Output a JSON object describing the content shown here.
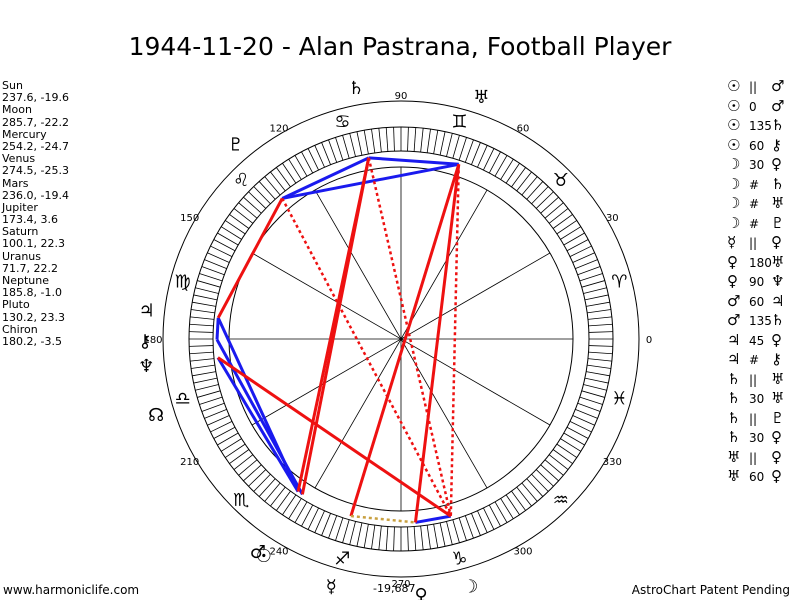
{
  "title": "1944-11-20 - Alan Pastrana, Football Player",
  "planets": [
    {
      "name": "Sun",
      "coords": "237.6, -19.6",
      "glyph": "☉",
      "lon": 237.6
    },
    {
      "name": "Moon",
      "coords": "285.7, -22.2",
      "glyph": "☽",
      "lon": 285.7
    },
    {
      "name": "Mercury",
      "coords": "254.2, -24.7",
      "glyph": "☿",
      "lon": 254.2
    },
    {
      "name": "Venus",
      "coords": "274.5, -25.3",
      "glyph": "♀",
      "lon": 274.5
    },
    {
      "name": "Mars",
      "coords": "236.0, -19.4",
      "glyph": "♂",
      "lon": 236.0
    },
    {
      "name": "Jupiter",
      "coords": "173.4, 3.6",
      "glyph": "♃",
      "lon": 173.4
    },
    {
      "name": "Saturn",
      "coords": "100.1, 22.3",
      "glyph": "♄",
      "lon": 100.1
    },
    {
      "name": "Uranus",
      "coords": "71.7, 22.2",
      "glyph": "♅",
      "lon": 71.7
    },
    {
      "name": "Neptune",
      "coords": "185.8, -1.0",
      "glyph": "♆",
      "lon": 185.8
    },
    {
      "name": "Pluto",
      "coords": "130.2, 23.3",
      "glyph": "♇",
      "lon": 130.2
    },
    {
      "name": "Chiron",
      "coords": "180.2, -3.5",
      "glyph": "⚷",
      "lon": 180.2
    }
  ],
  "node": {
    "glyph": "☊",
    "lon": 197
  },
  "aspects": [
    {
      "p1": "☉",
      "sym": "||",
      "p2": "♂"
    },
    {
      "p1": "☉",
      "sym": "0",
      "p2": "♂"
    },
    {
      "p1": "☉",
      "sym": "135",
      "p2": "♄"
    },
    {
      "p1": "☉",
      "sym": "60",
      "p2": "⚷"
    },
    {
      "p1": "☽",
      "sym": "30",
      "p2": "♀"
    },
    {
      "p1": "☽",
      "sym": "#",
      "p2": "♄"
    },
    {
      "p1": "☽",
      "sym": "#",
      "p2": "♅"
    },
    {
      "p1": "☽",
      "sym": "#",
      "p2": "♇"
    },
    {
      "p1": "☿",
      "sym": "||",
      "p2": "♀"
    },
    {
      "p1": "♀",
      "sym": "180",
      "p2": "♅"
    },
    {
      "p1": "♀",
      "sym": "90",
      "p2": "♆"
    },
    {
      "p1": "♂",
      "sym": "60",
      "p2": "♃"
    },
    {
      "p1": "♂",
      "sym": "135",
      "p2": "♄"
    },
    {
      "p1": "♃",
      "sym": "45",
      "p2": "♀"
    },
    {
      "p1": "♃",
      "sym": "#",
      "p2": "⚷"
    },
    {
      "p1": "♄",
      "sym": "||",
      "p2": "♅"
    },
    {
      "p1": "♄",
      "sym": "30",
      "p2": "♅"
    },
    {
      "p1": "♄",
      "sym": "||",
      "p2": "♇"
    },
    {
      "p1": "♄",
      "sym": "30",
      "p2": "♀"
    },
    {
      "p1": "♅",
      "sym": "||",
      "p2": "♀"
    },
    {
      "p1": "♅",
      "sym": "60",
      "p2": "♀"
    }
  ],
  "degree_labels": [
    "0",
    "30",
    "60",
    "90",
    "120",
    "150",
    "180",
    "210",
    "240",
    "270",
    "300",
    "330"
  ],
  "zodiac_glyphs": [
    "♈",
    "♉",
    "♊",
    "♋",
    "♌",
    "♍",
    "♎",
    "♏",
    "♐",
    "♑",
    "♒",
    "♓"
  ],
  "chart_lines": [
    {
      "from": 100.1,
      "to": 71.7,
      "color": "blue",
      "style": "solid"
    },
    {
      "from": 100.1,
      "to": 130.2,
      "color": "blue",
      "style": "solid"
    },
    {
      "from": 71.7,
      "to": 130.2,
      "color": "blue",
      "style": "solid"
    },
    {
      "from": 173.4,
      "to": 180.2,
      "color": "blue",
      "style": "solid"
    },
    {
      "from": 173.4,
      "to": 236.0,
      "color": "blue",
      "style": "solid"
    },
    {
      "from": 180.2,
      "to": 237.6,
      "color": "blue",
      "style": "solid"
    },
    {
      "from": 185.8,
      "to": 236.0,
      "color": "blue",
      "style": "solid"
    },
    {
      "from": 274.5,
      "to": 285.7,
      "color": "blue",
      "style": "solid"
    },
    {
      "from": 100.1,
      "to": 237.6,
      "color": "red",
      "style": "solid"
    },
    {
      "from": 100.1,
      "to": 236.0,
      "color": "red",
      "style": "solid"
    },
    {
      "from": 71.7,
      "to": 254.2,
      "color": "red",
      "style": "solid"
    },
    {
      "from": 71.7,
      "to": 274.5,
      "color": "red",
      "style": "solid"
    },
    {
      "from": 130.2,
      "to": 173.4,
      "color": "red",
      "style": "solid"
    },
    {
      "from": 185.8,
      "to": 285.7,
      "color": "red",
      "style": "solid"
    },
    {
      "from": 100.1,
      "to": 285.7,
      "color": "red",
      "style": "dotted"
    },
    {
      "from": 71.7,
      "to": 285.7,
      "color": "red",
      "style": "dotted"
    },
    {
      "from": 130.2,
      "to": 285.7,
      "color": "red",
      "style": "dotted"
    },
    {
      "from": 254.2,
      "to": 274.5,
      "color": "orange",
      "style": "dotted"
    }
  ],
  "colors": {
    "red": "#ee1111",
    "blue": "#1a1aee",
    "orange": "#c8a040"
  },
  "footer_left": "www.harmoniclife.com",
  "footer_right": "AstroChart Patent Pending",
  "center_readout": "-19,687"
}
